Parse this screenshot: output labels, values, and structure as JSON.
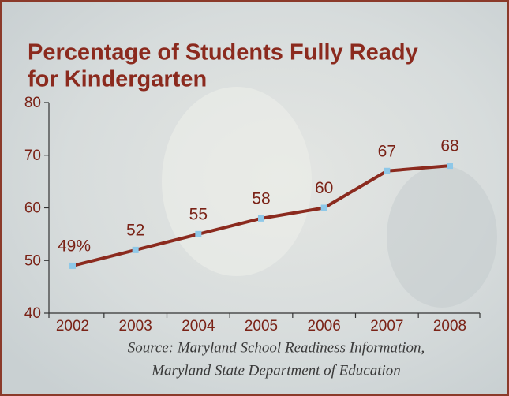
{
  "chart_data": {
    "type": "line",
    "title": [
      "Percentage of Students Fully Ready",
      "for Kindergarten"
    ],
    "categories": [
      "2002",
      "2003",
      "2004",
      "2005",
      "2006",
      "2007",
      "2008"
    ],
    "series": [
      {
        "color": "#8b2a1e",
        "values": [
          49,
          52,
          55,
          58,
          60,
          67,
          68
        ],
        "value_labels": [
          "49%",
          "52",
          "55",
          "58",
          "60",
          "67",
          "68"
        ]
      }
    ],
    "ylim": [
      40,
      80
    ],
    "yticks": [
      40,
      50,
      60,
      70,
      80
    ],
    "marker_color": "#8ec8e8",
    "source": [
      "Source: Maryland School Readiness Information,",
      "Maryland State Department of Education"
    ]
  }
}
